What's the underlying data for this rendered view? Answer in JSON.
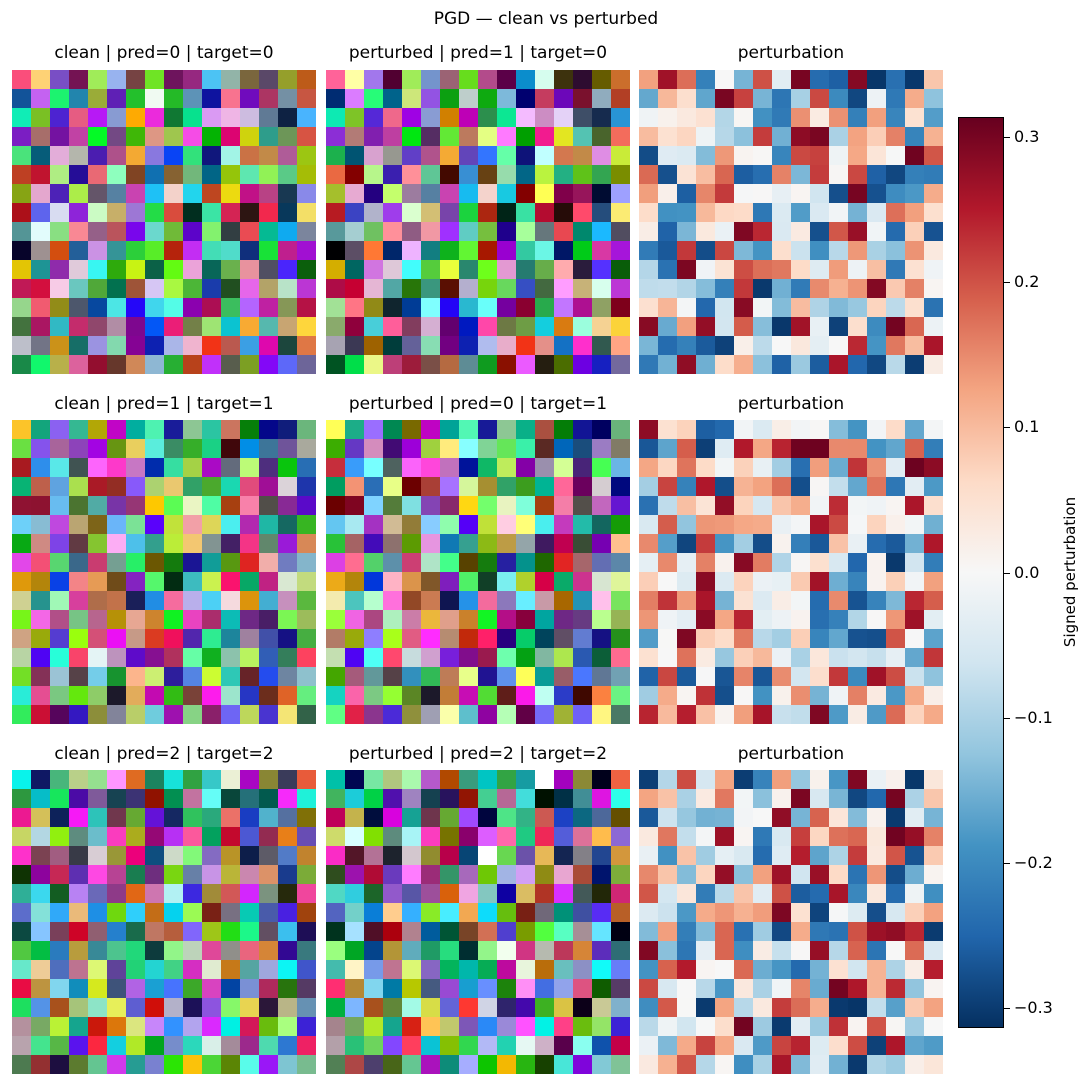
{
  "figure": {
    "title": "PGD — clean vs perturbed"
  },
  "chart_data": {
    "type": "heatmap",
    "title": "PGD — clean vs perturbed",
    "grid": false,
    "panel_size": 16,
    "seed": 12345,
    "colorbar": {
      "label": "Signed perturbation",
      "range": [
        -0.314,
        0.314
      ],
      "ticks": [
        "0.3",
        "0.2",
        "0.1",
        "0.0",
        "−0.1",
        "−0.2",
        "−0.3"
      ],
      "tick_values": [
        0.3,
        0.2,
        0.1,
        0.0,
        -0.1,
        -0.2,
        -0.3
      ],
      "colormap": "RdBu_r",
      "stops": [
        "#053061",
        "#2166ac",
        "#4393c3",
        "#92c5de",
        "#d1e5f0",
        "#f7f7f7",
        "#fddbc7",
        "#f4a582",
        "#d6604d",
        "#b2182b",
        "#67001f"
      ]
    },
    "rows": [
      {
        "clean_title": "clean | pred=0 | target=0",
        "perturbed_title": "perturbed | pred=1 | target=0",
        "perturbation_title": "perturbation"
      },
      {
        "clean_title": "clean | pred=1 | target=1",
        "perturbed_title": "perturbed | pred=0 | target=1",
        "perturbation_title": "perturbation"
      },
      {
        "clean_title": "clean | pred=2 | target=2",
        "perturbed_title": "perturbed | pred=2 | target=2",
        "perturbation_title": "perturbation"
      }
    ]
  }
}
